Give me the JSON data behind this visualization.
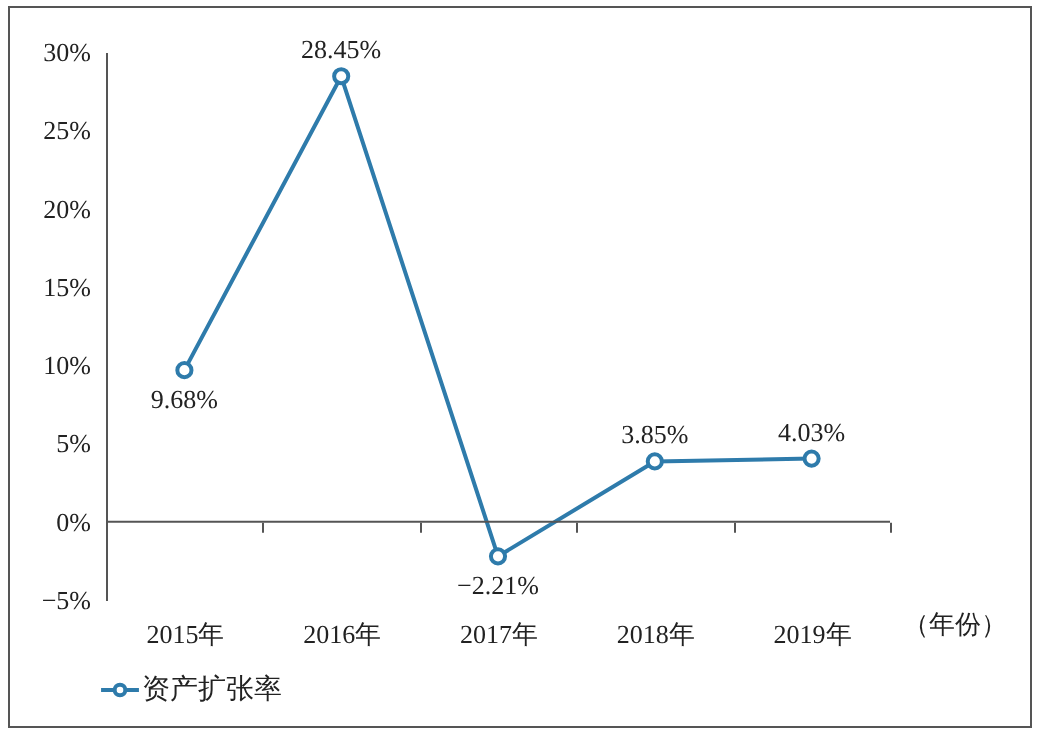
{
  "chart_data": {
    "type": "line",
    "categories": [
      "2015年",
      "2016年",
      "2017年",
      "2018年",
      "2019年"
    ],
    "xlabel": "（年份）",
    "series": [
      {
        "name": "资产扩张率",
        "color": "#2e7bab",
        "values": [
          9.68,
          28.45,
          -2.21,
          3.85,
          4.03
        ],
        "value_labels": [
          "9.68%",
          "28.45%",
          "−2.21%",
          "3.85%",
          "4.03%"
        ]
      }
    ],
    "ylim": [
      -5,
      30
    ],
    "yticks": [
      {
        "value": -5,
        "label": "−5%"
      },
      {
        "value": 0,
        "label": "0%"
      },
      {
        "value": 5,
        "label": "5%"
      },
      {
        "value": 10,
        "label": "10%"
      },
      {
        "value": 15,
        "label": "15%"
      },
      {
        "value": 20,
        "label": "20%"
      },
      {
        "value": 25,
        "label": "25%"
      },
      {
        "value": 30,
        "label": "30%"
      }
    ],
    "ref_lines": [
      {
        "axis": "y",
        "value": 0,
        "color": "#555555"
      }
    ],
    "marker": "circle",
    "line_style": "solid",
    "grid": false,
    "legend": "bottom"
  }
}
